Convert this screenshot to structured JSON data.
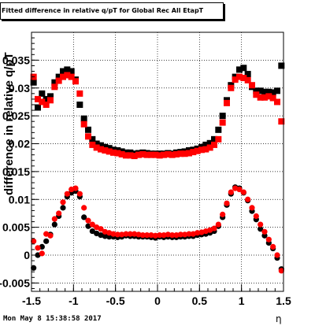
{
  "chart_data": {
    "type": "scatter",
    "title": "Fitted difference in relative q/pT for Global Rec All EtapT",
    "xlabel": "η",
    "ylabel": "difference in relative q/pT",
    "xlim": [
      -1.5,
      1.5
    ],
    "ylim": [
      -0.0065,
      0.04
    ],
    "x_ticks": [
      "-1.5",
      "-1",
      "-0.5",
      "0",
      "0.5",
      "1",
      "1.5"
    ],
    "y_ticks": [
      "-0.005",
      "0",
      "0.005",
      "0.01",
      "0.015",
      "0.02",
      "0.025",
      "0.03",
      "0.035"
    ],
    "y_tick_values": [
      -0.005,
      0,
      0.005,
      0.01,
      0.015,
      0.02,
      0.025,
      0.03,
      0.035
    ],
    "grid": true,
    "timestamp": "Mon May  8 15:38:58 2017",
    "x": [
      -1.475,
      -1.425,
      -1.375,
      -1.325,
      -1.275,
      -1.225,
      -1.175,
      -1.125,
      -1.075,
      -1.025,
      -0.975,
      -0.925,
      -0.875,
      -0.825,
      -0.775,
      -0.725,
      -0.675,
      -0.625,
      -0.575,
      -0.525,
      -0.475,
      -0.425,
      -0.375,
      -0.325,
      -0.275,
      -0.225,
      -0.175,
      -0.125,
      -0.075,
      -0.025,
      0.025,
      0.075,
      0.125,
      0.175,
      0.225,
      0.275,
      0.325,
      0.375,
      0.425,
      0.475,
      0.525,
      0.575,
      0.625,
      0.675,
      0.725,
      0.775,
      0.825,
      0.875,
      0.925,
      0.975,
      1.025,
      1.075,
      1.125,
      1.175,
      1.225,
      1.275,
      1.325,
      1.375,
      1.425,
      1.475
    ],
    "series": [
      {
        "marker": "square",
        "color": "#000000",
        "values": [
          0.031,
          0.0265,
          0.029,
          0.028,
          0.0285,
          0.031,
          0.032,
          0.033,
          0.0333,
          0.033,
          0.0315,
          0.027,
          0.0245,
          0.0225,
          0.0208,
          0.02,
          0.0197,
          0.0194,
          0.0192,
          0.0189,
          0.0188,
          0.0186,
          0.0184,
          0.0184,
          0.0182,
          0.0183,
          0.0184,
          0.0183,
          0.0182,
          0.0182,
          0.0182,
          0.0182,
          0.0183,
          0.0182,
          0.0184,
          0.0185,
          0.0186,
          0.0188,
          0.0189,
          0.0191,
          0.0194,
          0.0198,
          0.0201,
          0.0208,
          0.0225,
          0.025,
          0.0278,
          0.0305,
          0.032,
          0.0333,
          0.0336,
          0.0325,
          0.0302,
          0.0295,
          0.0295,
          0.0293,
          0.0293,
          0.0292,
          0.0295,
          0.034
        ]
      },
      {
        "marker": "square",
        "color": "#ff0000",
        "values": [
          0.032,
          0.028,
          0.0275,
          0.027,
          0.0278,
          0.0302,
          0.0313,
          0.032,
          0.0323,
          0.032,
          0.0312,
          0.029,
          0.0235,
          0.0213,
          0.0198,
          0.0193,
          0.019,
          0.0188,
          0.0186,
          0.0184,
          0.0183,
          0.0181,
          0.0179,
          0.0179,
          0.0178,
          0.018,
          0.0181,
          0.018,
          0.018,
          0.018,
          0.0179,
          0.018,
          0.0181,
          0.018,
          0.0181,
          0.0182,
          0.0182,
          0.0183,
          0.0185,
          0.0187,
          0.0189,
          0.019,
          0.0193,
          0.0198,
          0.0208,
          0.0238,
          0.0273,
          0.03,
          0.0315,
          0.032,
          0.0318,
          0.0314,
          0.0305,
          0.0288,
          0.0283,
          0.0283,
          0.0285,
          0.0282,
          0.0275,
          0.024
        ]
      },
      {
        "marker": "circle",
        "color": "#000000",
        "values": [
          -0.0023,
          0.0,
          0.0015,
          0.0025,
          0.0037,
          0.0055,
          0.007,
          0.0085,
          0.0105,
          0.0112,
          0.0115,
          0.0105,
          0.0068,
          0.0052,
          0.0043,
          0.0039,
          0.0036,
          0.0034,
          0.0033,
          0.0033,
          0.0032,
          0.0033,
          0.0035,
          0.0034,
          0.0034,
          0.0033,
          0.0033,
          0.0033,
          0.0032,
          0.0031,
          0.0033,
          0.0032,
          0.0033,
          0.0032,
          0.0032,
          0.0033,
          0.0033,
          0.0034,
          0.0034,
          0.0036,
          0.0037,
          0.0038,
          0.004,
          0.0043,
          0.0052,
          0.0068,
          0.009,
          0.011,
          0.0122,
          0.012,
          0.0112,
          0.0098,
          0.0079,
          0.0064,
          0.0047,
          0.0035,
          0.0022,
          0.0012,
          -0.0005,
          -0.0025
        ]
      },
      {
        "marker": "circle",
        "color": "#ff0000",
        "values": [
          0.0025,
          0.0013,
          0.0003,
          0.0038,
          0.0035,
          0.0065,
          0.0075,
          0.0095,
          0.011,
          0.0118,
          0.012,
          0.011,
          0.0085,
          0.0062,
          0.0055,
          0.005,
          0.0047,
          0.0042,
          0.004,
          0.0038,
          0.0037,
          0.0037,
          0.0038,
          0.0038,
          0.0038,
          0.0037,
          0.0036,
          0.0036,
          0.0036,
          0.0035,
          0.0036,
          0.0036,
          0.0037,
          0.0036,
          0.0036,
          0.0037,
          0.0037,
          0.0038,
          0.0038,
          0.004,
          0.0041,
          0.0043,
          0.0045,
          0.0048,
          0.0055,
          0.0073,
          0.0093,
          0.0113,
          0.012,
          0.0118,
          0.0113,
          0.01,
          0.0085,
          0.007,
          0.0055,
          0.0042,
          0.0028,
          0.0015,
          0.0,
          -0.0028
        ]
      }
    ]
  }
}
